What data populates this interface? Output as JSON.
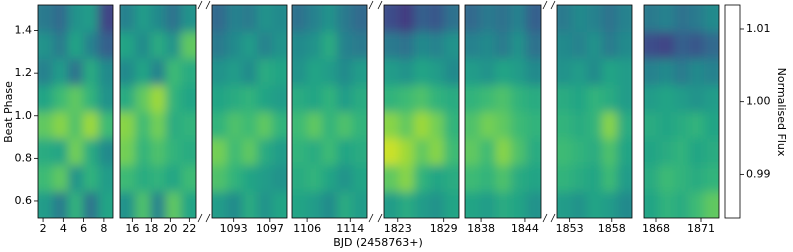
{
  "chart_data": {
    "type": "heatmap",
    "xlabel": "BJD (2458763+)",
    "ylabel": "Beat Phase",
    "ylim": [
      0.52,
      1.52
    ],
    "yticks": [
      0.6,
      0.8,
      {
        "value": 1,
        "label": "1.0"
      },
      1.2,
      1.4
    ],
    "ybins": [
      0.52,
      0.645,
      0.77,
      0.895,
      1.02,
      1.145,
      1.27,
      1.395,
      1.52
    ],
    "colormap": "viridis",
    "clim": [
      0.984,
      1.0133
    ],
    "colorbar_label": "Normalised Flux",
    "colorbar_ticks": [
      0.99,
      {
        "value": 1,
        "label": "1.00"
      },
      1.01
    ],
    "panels": [
      {
        "xlim": [
          1.5,
          8.9
        ],
        "xticks": [
          2,
          4,
          6,
          8
        ],
        "z": [
          [
            1.0,
            0.996,
            1.003,
            0.995,
            1.001
          ],
          [
            1.004,
            1.006,
            0.999,
            1.003,
            1.0
          ],
          [
            1.002,
            1.001,
            1.007,
            1.002,
            0.998
          ],
          [
            1.006,
            1.008,
            1.005,
            1.009,
            1.004
          ],
          [
            1.001,
            1.004,
            1.006,
            1.003,
            0.999
          ],
          [
            0.997,
            1.0,
            0.995,
            1.002,
            0.998
          ],
          [
            0.999,
            0.996,
            1.001,
            0.997,
            0.993
          ],
          [
            0.996,
            0.994,
            0.999,
            1.0,
            0.99
          ]
        ]
      },
      {
        "xlim": [
          14.7,
          22.7
        ],
        "xticks": [
          16,
          18,
          20,
          22
        ],
        "z": [
          [
            0.999,
            1.005,
            0.997,
            1.006,
            1.001
          ],
          [
            1.004,
            1.002,
            1.003,
            1.001,
            1.004
          ],
          [
            1.007,
            1.003,
            1.005,
            1.003,
            1.002
          ],
          [
            1.008,
            1.004,
            1.007,
            1.002,
            1.003
          ],
          [
            1.002,
            1.006,
            1.009,
            1.003,
            1.001
          ],
          [
            0.998,
            1.001,
            0.997,
            1.004,
            1.002
          ],
          [
            1.001,
            0.998,
            1.002,
            0.999,
            1.006
          ],
          [
            0.997,
            1.0,
            0.998,
            0.995,
            0.999
          ]
        ]
      },
      {
        "xlim": [
          1090.6,
          1098.9
        ],
        "xticks": [
          1093,
          1097
        ],
        "z": [
          [
            1.0,
            0.998,
            1.002,
            0.999,
            1.001
          ],
          [
            1.005,
            1.003,
            1.001,
            1.0,
            0.999
          ],
          [
            1.007,
            1.004,
            1.006,
            1.002,
            1.0
          ],
          [
            1.003,
            1.005,
            1.004,
            1.006,
            1.003
          ],
          [
            1.001,
            1.002,
            1.003,
            1.001,
            1.0
          ],
          [
            0.999,
            1.0,
            0.998,
            1.002,
            1.001
          ],
          [
            0.996,
            0.998,
            1.0,
            0.997,
            0.999
          ],
          [
            0.994,
            0.997,
            0.996,
            0.999,
            0.998
          ]
        ]
      },
      {
        "xlim": [
          1103.2,
          1117.1
        ],
        "xticks": [
          1106,
          1114
        ],
        "z": [
          [
            1.001,
            1.0,
            0.998,
            1.002,
            1.0
          ],
          [
            1.002,
            1.003,
            1.001,
            0.999,
            1.001
          ],
          [
            1.003,
            1.002,
            1.004,
            1.001,
            1.002
          ],
          [
            1.004,
            1.006,
            1.003,
            1.005,
            1.003
          ],
          [
            1.002,
            1.001,
            1.003,
            1.0,
            1.002
          ],
          [
            0.999,
            1.001,
            1.0,
            0.998,
            1.0
          ],
          [
            0.998,
            0.999,
            1.002,
            0.997,
            0.996
          ],
          [
            0.995,
            0.997,
            0.999,
            0.996,
            0.994
          ]
        ]
      },
      {
        "xlim": [
          1821.2,
          1831
        ],
        "xticks": [
          1823,
          1829
        ],
        "z": [
          [
            1.0,
            1.002,
            1.0,
            0.999,
            1.001
          ],
          [
            1.006,
            1.008,
            1.003,
            1.001,
            1.002
          ],
          [
            1.011,
            1.009,
            1.006,
            1.008,
            1.004
          ],
          [
            1.008,
            1.006,
            1.009,
            1.007,
            1.003
          ],
          [
            1.003,
            1.004,
            1.005,
            1.003,
            1.002
          ],
          [
            1.0,
            0.999,
            1.001,
            1.0,
            0.998
          ],
          [
            0.996,
            0.995,
            0.998,
            0.997,
            0.999
          ],
          [
            0.991,
            0.989,
            0.993,
            0.992,
            0.995
          ]
        ]
      },
      {
        "xlim": [
          1835.8,
          1846.2
        ],
        "xticks": [
          1838,
          1844
        ],
        "z": [
          [
            1.001,
            1.0,
            1.002,
            1.001,
            0.999
          ],
          [
            1.004,
            1.003,
            1.005,
            1.002,
            1.001
          ],
          [
            1.006,
            1.004,
            1.008,
            1.005,
            1.002
          ],
          [
            1.005,
            1.007,
            1.006,
            1.004,
            1.003
          ],
          [
            1.003,
            1.004,
            1.005,
            1.003,
            1.002
          ],
          [
            1.0,
            0.999,
            1.001,
            1.0,
            0.998
          ],
          [
            0.997,
            0.998,
            0.996,
            0.999,
            0.995
          ],
          [
            0.994,
            0.996,
            0.995,
            0.997,
            0.993
          ]
        ]
      },
      {
        "xlim": [
          1851.5,
          1860.4
        ],
        "xticks": [
          1853,
          1858
        ],
        "z": [
          [
            1.0,
            0.999,
            1.001,
            1.0,
            0.998
          ],
          [
            1.003,
            1.002,
            1.001,
            1.004,
            1.0
          ],
          [
            1.004,
            1.003,
            1.002,
            1.005,
            1.001
          ],
          [
            1.003,
            1.002,
            1.003,
            1.008,
            1.002
          ],
          [
            1.002,
            1.001,
            1.003,
            1.002,
            1.0
          ],
          [
            0.999,
            1.0,
            0.998,
            1.001,
            1.0
          ],
          [
            0.998,
            0.997,
            0.999,
            0.996,
            0.998
          ],
          [
            0.996,
            0.998,
            0.997,
            0.995,
            0.997
          ]
        ]
      },
      {
        "xlim": [
          1867.2,
          1872.2
        ],
        "xticks": [
          1868,
          1871
        ],
        "z": [
          [
            1.001,
            1.003,
            1.002,
            1.004,
            1.006
          ],
          [
            1.002,
            1.004,
            1.003,
            1.002,
            1.003
          ],
          [
            1.001,
            1.002,
            1.003,
            1.001,
            1.002
          ],
          [
            1.002,
            1.001,
            1.002,
            1.003,
            1.001
          ],
          [
            1.0,
            1.001,
            1.0,
            0.999,
            1.0
          ],
          [
            0.997,
            0.998,
            0.996,
            0.998,
            0.997
          ],
          [
            0.991,
            0.99,
            0.993,
            0.992,
            0.994
          ],
          [
            0.996,
            0.997,
            0.995,
            0.996,
            0.998
          ]
        ]
      }
    ]
  }
}
